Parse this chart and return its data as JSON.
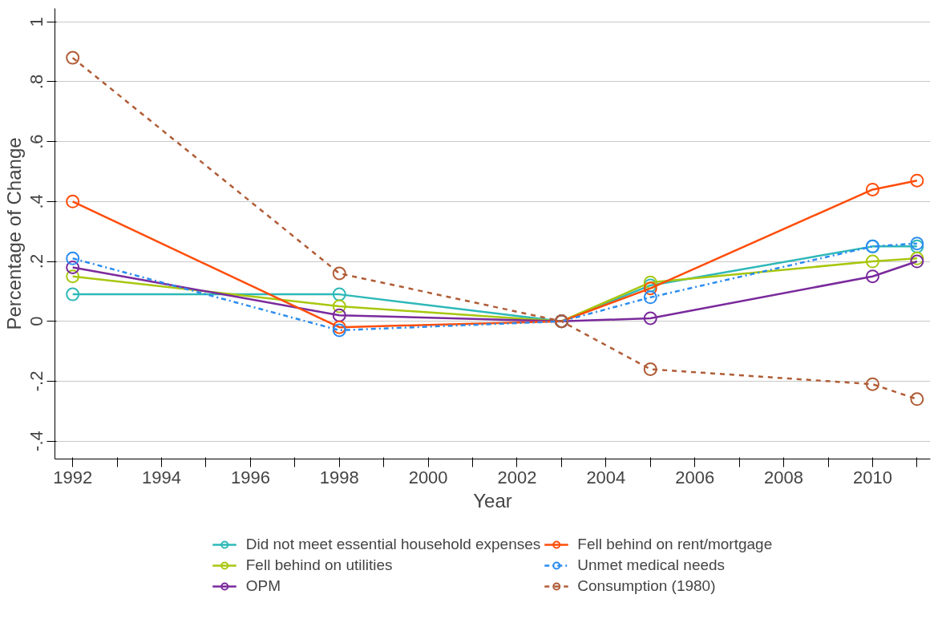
{
  "chart_data": {
    "type": "line",
    "xlabel": "Year",
    "ylabel": "Percentage of Change",
    "x": [
      1992,
      1998,
      2003,
      2005,
      2010,
      2011
    ],
    "series": [
      {
        "name": "Did not meet essential household expenses",
        "color": "#2eb8b8",
        "values": [
          0.09,
          0.09,
          0,
          0.12,
          0.25,
          0.25
        ]
      },
      {
        "name": "Fell behind on utilities",
        "color": "#a8c70f",
        "values": [
          0.15,
          0.05,
          0,
          0.13,
          0.2,
          0.21
        ]
      },
      {
        "name": "OPM",
        "color": "#7a2a9c",
        "values": [
          0.18,
          0.02,
          0,
          0.01,
          0.15,
          0.2
        ]
      },
      {
        "name": "Fell behind on rent/mortgage",
        "color": "#ff4d0a",
        "values": [
          0.4,
          -0.02,
          0,
          0.11,
          0.44,
          0.47
        ]
      },
      {
        "name": "Unmet medical needs",
        "color": "#2b8cf0",
        "values": [
          0.21,
          -0.03,
          0,
          0.08,
          0.25,
          0.26
        ],
        "line_style": "dashdot"
      },
      {
        "name": "Consumption (1980)",
        "color": "#b05c36",
        "values": [
          0.88,
          0.16,
          0,
          -0.16,
          -0.21,
          -0.26
        ],
        "line_style": "dashed"
      }
    ],
    "xlim": [
      1991.6,
      2011.3
    ],
    "ylim": [
      -0.46,
      1.045
    ],
    "xticks": [
      1992,
      {
        "value": 1993,
        "label": null
      },
      1994,
      {
        "value": 1995,
        "label": null
      },
      1996,
      {
        "value": 1997,
        "label": null
      },
      1998,
      {
        "value": 1999,
        "label": null
      },
      2000,
      {
        "value": 2001,
        "label": null
      },
      2002,
      {
        "value": 2003,
        "label": null
      },
      2004,
      {
        "value": 2005,
        "label": null
      },
      2006,
      {
        "value": 2007,
        "label": null
      },
      2008,
      {
        "value": 2009,
        "label": null
      },
      2010,
      {
        "value": 2011,
        "label": null
      }
    ],
    "yticks": [
      {
        "value": -0.4,
        "label": "-.4"
      },
      {
        "value": -0.2,
        "label": "-.2"
      },
      0,
      {
        "value": 0.2,
        "label": ".2"
      },
      {
        "value": 0.4,
        "label": ".4"
      },
      {
        "value": 0.6,
        "label": ".6"
      },
      {
        "value": 0.8,
        "label": ".8"
      },
      1
    ],
    "grid": "y",
    "legend": "bottom",
    "marker": "circle",
    "line_style": "solid"
  }
}
